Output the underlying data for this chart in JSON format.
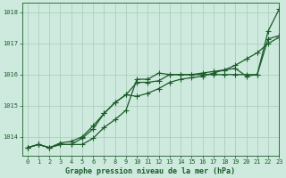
{
  "title": "Graphe pression niveau de la mer (hPa)",
  "bg_color": "#ceeade",
  "grid_color": "#aecebe",
  "line_color": "#1a5c28",
  "xlim": [
    -0.5,
    23
  ],
  "ylim": [
    1013.4,
    1018.3
  ],
  "yticks": [
    1014,
    1015,
    1016,
    1017,
    1018
  ],
  "xticks": [
    0,
    1,
    2,
    3,
    4,
    5,
    6,
    7,
    8,
    9,
    10,
    11,
    12,
    13,
    14,
    15,
    16,
    17,
    18,
    19,
    20,
    21,
    22,
    23
  ],
  "series1": [
    1013.65,
    1013.75,
    1013.65,
    1013.75,
    1013.75,
    1013.75,
    1013.95,
    1014.3,
    1014.55,
    1014.85,
    1015.85,
    1015.85,
    1016.05,
    1016.0,
    1016.0,
    1016.0,
    1016.0,
    1016.0,
    1016.0,
    1016.0,
    1016.0,
    1016.0,
    1017.4,
    1018.1
  ],
  "series2": [
    1013.65,
    1013.75,
    1013.65,
    1013.75,
    1013.75,
    1013.95,
    1014.25,
    1014.75,
    1015.1,
    1015.35,
    1015.75,
    1015.75,
    1015.8,
    1016.0,
    1016.0,
    1016.0,
    1016.05,
    1016.1,
    1016.15,
    1016.2,
    1015.95,
    1016.0,
    1017.15,
    1017.25
  ],
  "series3": [
    1013.65,
    1013.75,
    1013.65,
    1013.8,
    1013.85,
    1014.0,
    1014.35,
    1014.75,
    1015.1,
    1015.35,
    1015.3,
    1015.4,
    1015.55,
    1015.75,
    1015.85,
    1015.9,
    1015.95,
    1016.05,
    1016.15,
    1016.3,
    1016.5,
    1016.7,
    1017.0,
    1017.2
  ]
}
